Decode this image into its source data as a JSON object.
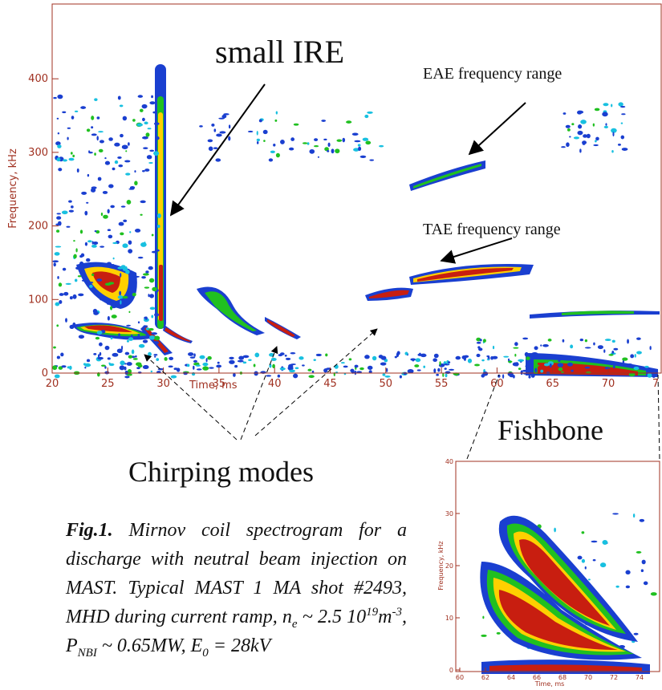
{
  "main_plot": {
    "x_label": "Time, ms",
    "y_label": "Frequency, kHz",
    "xticks": [
      20,
      25,
      30,
      35,
      40,
      45,
      50,
      55,
      60,
      65,
      70,
      7
    ],
    "yticks": [
      0,
      100,
      200,
      300,
      400
    ]
  },
  "annotations": {
    "small_ire": "small IRE",
    "eae": "EAE frequency range",
    "tae": "TAE frequency range",
    "chirping": "Chirping modes",
    "fishbone": "Fishbone"
  },
  "caption": {
    "parts": [
      "Fig.1.",
      " Mirnov coil spectrogram for a discharge with neutral beam injection on MAST. Typical MAST 1 MA shot #2493, MHD during current ramp, n",
      "e",
      " ~ 2.5 10",
      "19",
      "m",
      "-3",
      ", P",
      "NBI",
      " ~ 0.65MW, E",
      "0",
      " = 28kV"
    ]
  },
  "inset": {
    "x_label": "Time, ms",
    "y_label": "Frequency, kHz",
    "xticks": [
      60,
      62,
      64,
      66,
      68,
      70,
      72,
      74
    ],
    "yticks": [
      0,
      10,
      20,
      30,
      40
    ]
  }
}
